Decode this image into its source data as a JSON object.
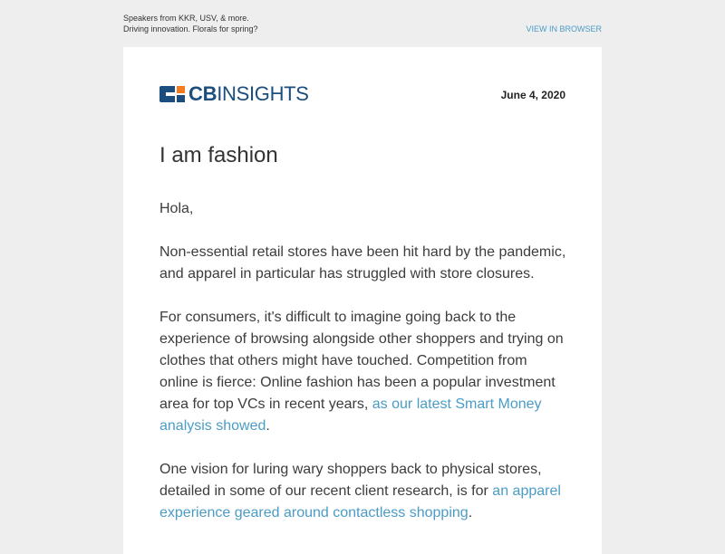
{
  "preheader": {
    "line1": "Speakers from KKR, USV, & more.",
    "line2": "Driving innovation. Florals for spring?"
  },
  "view_in_browser": "VIEW IN BROWSER",
  "logo": {
    "text_bold": "CB",
    "text_light": "INSIGHTS",
    "icon": "cb-insights-logo-icon",
    "colors": {
      "navy": "#1b4d7e",
      "orange": "#f47b20"
    }
  },
  "date": "June 4, 2020",
  "title": "I am fashion",
  "greeting": "Hola,",
  "paragraph1": "Non-essential retail stores have been hit hard by the pandemic, and apparel in particular has struggled with store closures.",
  "paragraph2": {
    "text": "For consumers, it's difficult to imagine going back to the experience of browsing alongside other shoppers and trying on clothes that others might have touched. Competition from online is fierce: Online fashion has been a popular investment area for top VCs in recent years, ",
    "link": "as our latest Smart Money analysis showed",
    "end": "."
  },
  "paragraph3": {
    "text": "One vision for luring wary shoppers back to physical stores, detailed in some of our recent client research, is for ",
    "link": "an apparel experience geared around contactless shopping",
    "end": "."
  },
  "colors": {
    "link": "#4a9cc7",
    "background": "#eeeeee",
    "card": "#ffffff"
  }
}
